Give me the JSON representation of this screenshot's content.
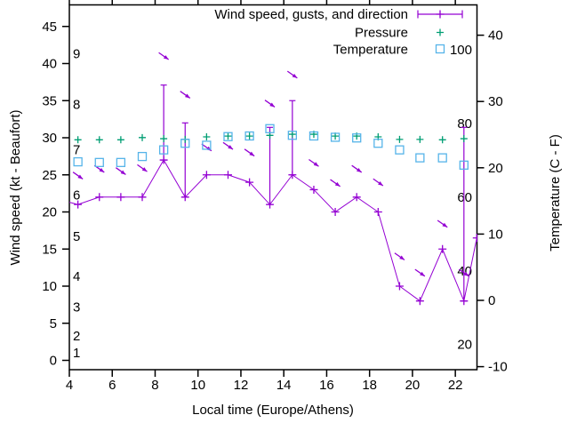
{
  "chart_data": {
    "type": "line",
    "title": "",
    "xlabel": "Local time (Europe/Athens)",
    "ylabel": "Wind speed (kt - Beaufort)",
    "y2label": "Temperature (C - F)",
    "grid": false,
    "legend_position": "top-right",
    "background_color": "#ffffff",
    "axis_color": "#000000",
    "x_range": [
      4,
      23.03
    ],
    "ylim_kt": [
      -1.2,
      47.9
    ],
    "y2lim_c": [
      -10.3,
      44.6
    ],
    "x_ticks": [
      4,
      6,
      8,
      10,
      12,
      14,
      16,
      18,
      20,
      22
    ],
    "y_ticks_kt": [
      0,
      5,
      10,
      15,
      20,
      25,
      30,
      35,
      40,
      45
    ],
    "y2_ticks_c": [
      -10,
      0,
      10,
      20,
      30,
      40
    ],
    "beaufort_scale": {
      "labels": [
        "1",
        "2",
        "3",
        "4",
        "5",
        "6",
        "7",
        "8",
        "9"
      ],
      "kt_positions": [
        1.0,
        3.3,
        7.2,
        11.3,
        16.7,
        22.3,
        28.4,
        34.5,
        41.3
      ]
    },
    "fahrenheit_scale": {
      "labels": [
        "20",
        "40",
        "60",
        "80",
        "100"
      ],
      "f_positions": [
        20,
        40,
        60,
        80,
        100
      ]
    },
    "x": [
      4.4,
      5.4,
      6.4,
      7.4,
      8.4,
      9.4,
      10.4,
      11.4,
      12.4,
      13.35,
      14.4,
      15.4,
      16.4,
      17.4,
      18.4,
      19.4,
      20.35,
      21.4,
      22.4
    ],
    "series": [
      {
        "name": "Wind speed, gusts, and direction",
        "type": "errorbars-line",
        "marker": "plus",
        "color": "#9400d3",
        "axis": "left-kt",
        "values": [
          21,
          22,
          22,
          22,
          27,
          22,
          25,
          25,
          24,
          21,
          25,
          23,
          20,
          22,
          20,
          10,
          8,
          15,
          8
        ],
        "gusts": [
          null,
          null,
          null,
          null,
          37.1,
          32,
          null,
          null,
          null,
          31.4,
          35,
          null,
          null,
          null,
          null,
          null,
          null,
          null,
          31.4
        ],
        "direction_arrows": [
          24.9,
          25.8,
          25.5,
          25.9,
          41,
          35.8,
          28.7,
          28.9,
          28.0,
          34.6,
          38.5,
          26.6,
          23.9,
          25.8,
          24.0,
          14.0,
          11.8,
          18.4,
          11.8
        ],
        "arrow_angle_deg": 35,
        "edge_start": {
          "x": 4.0,
          "value": 21.3
        },
        "edge_end": {
          "x": 23.0,
          "value": 16.5
        }
      },
      {
        "name": "Pressure",
        "type": "points",
        "marker": "plus",
        "color": "#009e73",
        "axis": "right-f",
        "values": [
          75.6,
          75.6,
          75.6,
          76.2,
          75.9,
          75.7,
          76.4,
          76.6,
          76.6,
          76.8,
          77.1,
          77.1,
          76.6,
          76.6,
          76.4,
          75.7,
          75.7,
          75.6,
          75.9
        ]
      },
      {
        "name": "Temperature",
        "type": "points",
        "marker": "open-square",
        "color": "#56b4e9",
        "axis": "right-c",
        "values": [
          20.9,
          20.8,
          20.8,
          21.7,
          22.7,
          23.7,
          23.4,
          24.7,
          24.8,
          25.9,
          24.9,
          24.8,
          24.6,
          24.5,
          23.7,
          22.7,
          21.5,
          21.5,
          20.4
        ]
      }
    ]
  }
}
